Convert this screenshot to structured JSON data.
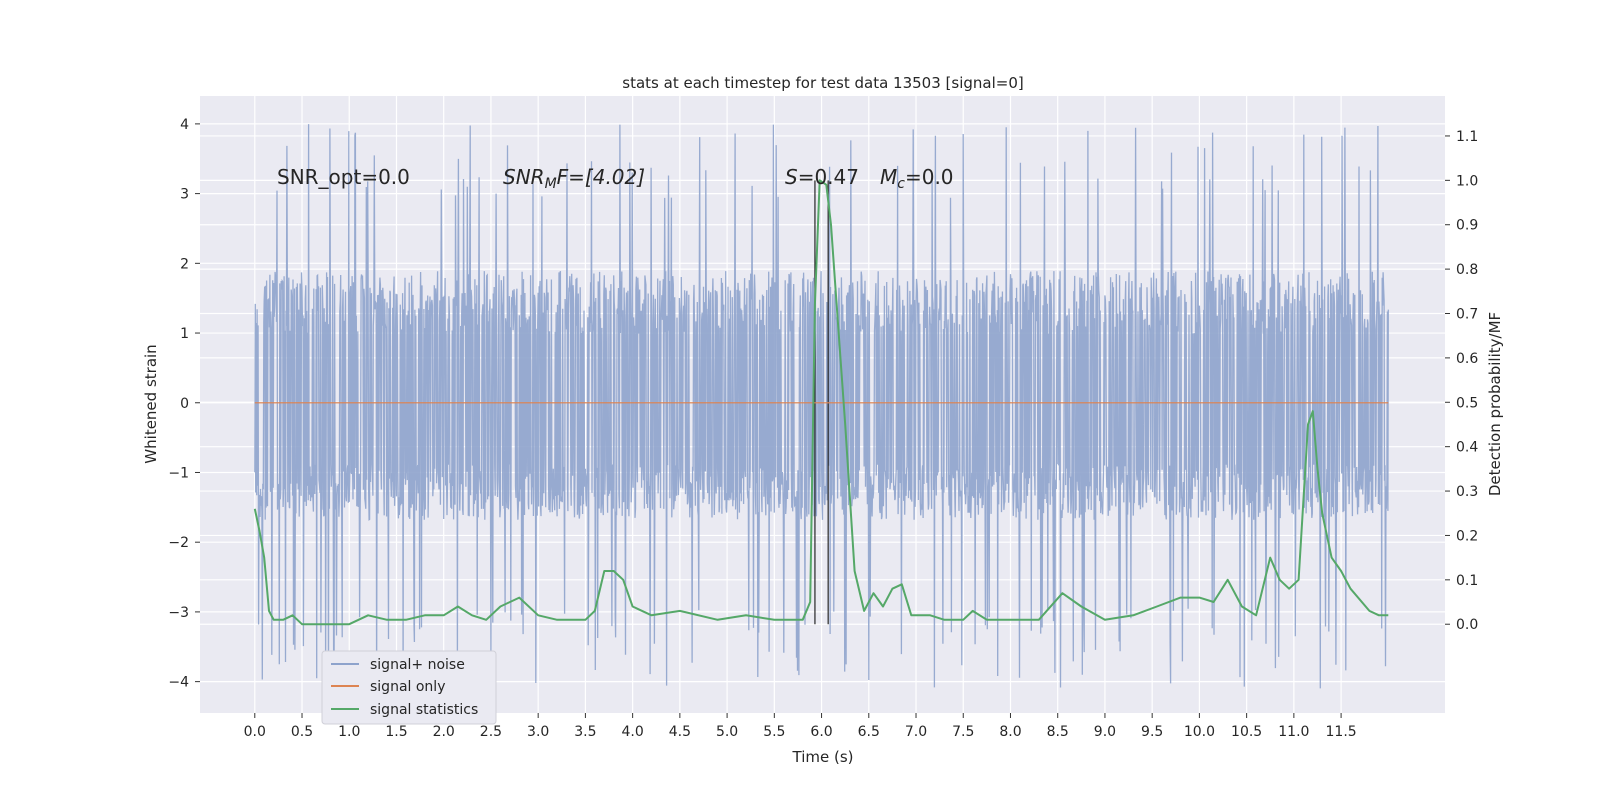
{
  "chart_data": {
    "type": "line",
    "title": "stats at each timestep for test data 13503 [signal=0]",
    "xlabel": "Time (s)",
    "ylabel_left": "Whitened strain",
    "ylabel_right": "Detection probability/MF",
    "xlim": [
      -0.58,
      12.6
    ],
    "ylim_left": [
      -4.45,
      4.4
    ],
    "ylim_right": [
      -0.2,
      1.19
    ],
    "x_ticks": [
      "0.0",
      "0.5",
      "1.0",
      "1.5",
      "2.0",
      "2.5",
      "3.0",
      "3.5",
      "4.0",
      "4.5",
      "5.0",
      "5.5",
      "6.0",
      "6.5",
      "7.0",
      "7.5",
      "8.0",
      "8.5",
      "9.0",
      "9.5",
      "10.0",
      "10.5",
      "11.0",
      "11.5"
    ],
    "y_ticks_left": [
      "−4",
      "−3",
      "−2",
      "−1",
      "0",
      "1",
      "2",
      "3",
      "4"
    ],
    "y_ticks_right": [
      "0.0",
      "0.1",
      "0.2",
      "0.3",
      "0.4",
      "0.5",
      "0.6",
      "0.7",
      "0.8",
      "0.9",
      "1.0",
      "1.1"
    ],
    "grid": true,
    "legend_position": "lower-left",
    "annotations": {
      "snr_opt": "SNR_opt=0.0",
      "snr_mf_main": "SNR",
      "snr_mf_sub": "M",
      "snr_mf_rest": "F=[4.02]",
      "s_main": "S",
      "s_rest": "=0.47",
      "mc_main": "M",
      "mc_sub": "c",
      "mc_rest": "=0.0"
    },
    "vertical_lines_x": [
      5.93,
      6.07
    ],
    "series": [
      {
        "name": "signal+ noise",
        "color": "#8ea3cc",
        "axis": "left",
        "x_range": [
          0.0,
          12.0
        ],
        "band_typical": [
          -1.6,
          1.8
        ],
        "band_extreme": [
          -4.1,
          4.0
        ]
      },
      {
        "name": "signal only",
        "color": "#dd8452",
        "axis": "left",
        "x": [
          0.0,
          12.0
        ],
        "values": [
          0.0,
          0.0
        ]
      },
      {
        "name": "signal statistics",
        "color": "#55a868",
        "axis": "right",
        "x": [
          0.0,
          0.05,
          0.1,
          0.15,
          0.2,
          0.3,
          0.4,
          0.5,
          0.7,
          1.0,
          1.2,
          1.4,
          1.6,
          1.8,
          2.0,
          2.15,
          2.3,
          2.45,
          2.6,
          2.8,
          3.0,
          3.2,
          3.5,
          3.6,
          3.7,
          3.8,
          3.9,
          4.0,
          4.2,
          4.5,
          4.9,
          5.2,
          5.5,
          5.8,
          5.88,
          5.93,
          5.98,
          6.05,
          6.1,
          6.15,
          6.25,
          6.35,
          6.45,
          6.55,
          6.65,
          6.75,
          6.85,
          6.95,
          7.05,
          7.15,
          7.3,
          7.5,
          7.6,
          7.75,
          8.0,
          8.3,
          8.55,
          8.75,
          9.0,
          9.3,
          9.55,
          9.8,
          10.0,
          10.15,
          10.3,
          10.45,
          10.6,
          10.75,
          10.85,
          10.95,
          11.05,
          11.15,
          11.2,
          11.25,
          11.3,
          11.4,
          11.5,
          11.6,
          11.8,
          11.9,
          12.0
        ],
        "values": [
          0.26,
          0.21,
          0.15,
          0.03,
          0.01,
          0.01,
          0.02,
          0.0,
          0.0,
          0.0,
          0.02,
          0.01,
          0.01,
          0.02,
          0.02,
          0.04,
          0.02,
          0.01,
          0.04,
          0.06,
          0.02,
          0.01,
          0.01,
          0.03,
          0.12,
          0.12,
          0.1,
          0.04,
          0.02,
          0.03,
          0.01,
          0.02,
          0.01,
          0.01,
          0.05,
          0.72,
          1.0,
          0.99,
          0.9,
          0.75,
          0.45,
          0.12,
          0.03,
          0.07,
          0.04,
          0.08,
          0.09,
          0.02,
          0.02,
          0.02,
          0.01,
          0.01,
          0.03,
          0.01,
          0.01,
          0.01,
          0.07,
          0.04,
          0.01,
          0.02,
          0.04,
          0.06,
          0.06,
          0.05,
          0.1,
          0.04,
          0.02,
          0.15,
          0.1,
          0.08,
          0.1,
          0.45,
          0.48,
          0.35,
          0.25,
          0.15,
          0.12,
          0.08,
          0.03,
          0.02,
          0.02
        ]
      }
    ]
  }
}
